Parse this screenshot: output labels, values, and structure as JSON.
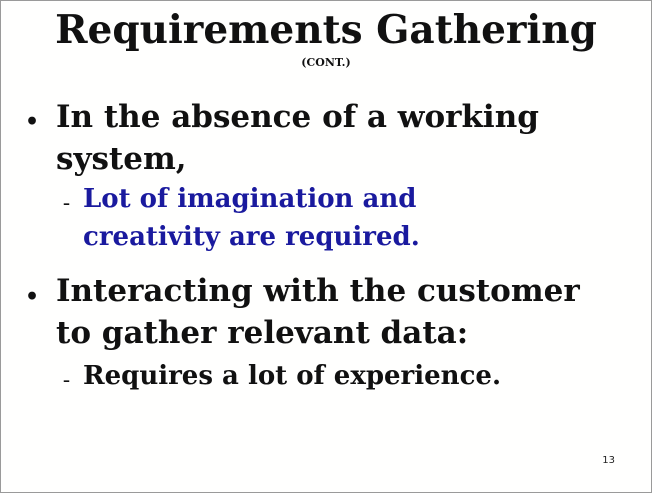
{
  "slide": {
    "title": "Requirements Gathering",
    "subtitle": "(CONT.)",
    "bullets": [
      {
        "line1": "In the absence of a working",
        "line2": "system,",
        "sub": {
          "line1": "Lot of imagination and",
          "line2": "creativity  are required."
        }
      },
      {
        "line1": "Interacting with the customer",
        "line2": "to gather relevant data:",
        "sub": {
          "line1": "Requires a lot of experience."
        }
      }
    ],
    "page_number": "13",
    "colors": {
      "text": "#111111",
      "highlight_blue": "#1a1a9e",
      "background": "#ffffff"
    }
  }
}
